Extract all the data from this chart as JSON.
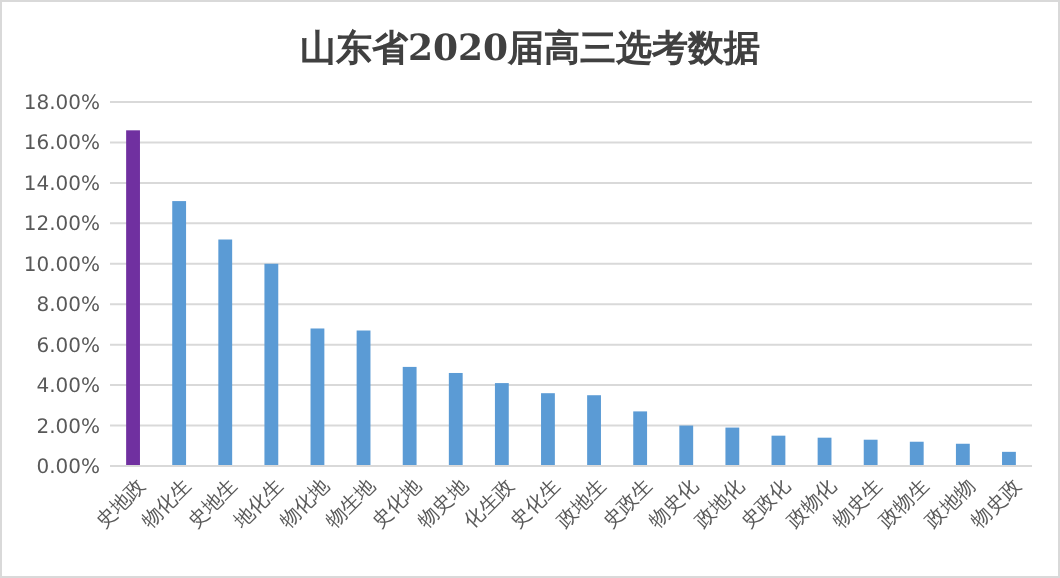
{
  "chart_data": {
    "type": "bar",
    "title": "山东省2020届高三选考数据",
    "categories": [
      "史地政",
      "物化生",
      "史地生",
      "地化生",
      "物化地",
      "物生地",
      "史化地",
      "物史地",
      "化生政",
      "史化生",
      "政地生",
      "史政生",
      "物史化",
      "政地化",
      "史政化",
      "政物化",
      "物史生",
      "政物生",
      "政地物",
      "物史政"
    ],
    "values": [
      16.6,
      13.1,
      11.2,
      10.0,
      6.8,
      6.7,
      4.9,
      4.6,
      4.1,
      3.6,
      3.5,
      2.7,
      2.0,
      1.9,
      1.5,
      1.4,
      1.3,
      1.2,
      1.1,
      0.7
    ],
    "colors": [
      "#7030a0",
      "#5b9bd5",
      "#5b9bd5",
      "#5b9bd5",
      "#5b9bd5",
      "#5b9bd5",
      "#5b9bd5",
      "#5b9bd5",
      "#5b9bd5",
      "#5b9bd5",
      "#5b9bd5",
      "#5b9bd5",
      "#5b9bd5",
      "#5b9bd5",
      "#5b9bd5",
      "#5b9bd5",
      "#5b9bd5",
      "#5b9bd5",
      "#5b9bd5",
      "#5b9bd5"
    ],
    "ylim": [
      0,
      18
    ],
    "yticks": [
      {
        "value": 0,
        "label": "0.00%"
      },
      {
        "value": 2,
        "label": "2.00%"
      },
      {
        "value": 4,
        "label": "4.00%"
      },
      {
        "value": 6,
        "label": "6.00%"
      },
      {
        "value": 8,
        "label": "8.00%"
      },
      {
        "value": 10,
        "label": "10.00%"
      },
      {
        "value": 12,
        "label": "12.00%"
      },
      {
        "value": 14,
        "label": "14.00%"
      },
      {
        "value": 16,
        "label": "16.00%"
      },
      {
        "value": 18,
        "label": "18.00%"
      }
    ],
    "grid": "y"
  }
}
